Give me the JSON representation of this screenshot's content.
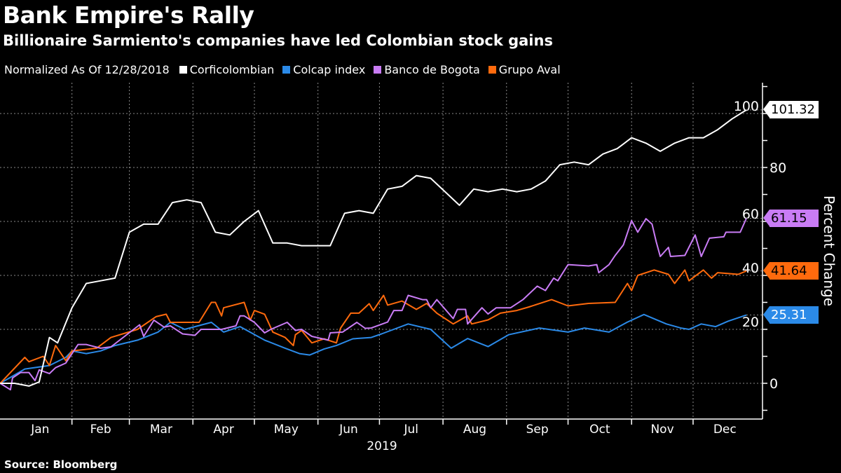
{
  "header": {
    "title": "Bank Empire's Rally",
    "subtitle": "Billionaire Sarmiento's companies have led Colombian stock gains"
  },
  "legend": {
    "note": "Normalized As Of 12/28/2018",
    "items": [
      {
        "label": "Corficolombian",
        "color": "#ffffff"
      },
      {
        "label": "Colcap index",
        "color": "#2b8ae8"
      },
      {
        "label": "Banco de Bogota",
        "color": "#c97cf5"
      },
      {
        "label": "Grupo Aval",
        "color": "#ff6a0d"
      }
    ]
  },
  "footer": {
    "source": "Source: Bloomberg"
  },
  "chart_data": {
    "type": "line",
    "title": "Bank Empire's Rally",
    "subtitle": "Billionaire Sarmiento's companies have led Colombian stock gains",
    "xlabel": "2019",
    "ylabel": "Percent Change",
    "y_axis_side": "right",
    "ylim": [
      -13,
      111
    ],
    "yticks": [
      0,
      20,
      40,
      60,
      80,
      100
    ],
    "xticks": [
      "Jan",
      "Feb",
      "Mar",
      "Apr",
      "May",
      "Jun",
      "Jul",
      "Aug",
      "Sep",
      "Oct",
      "Nov",
      "Dec"
    ],
    "grid": true,
    "legend_position": "top",
    "series": [
      {
        "name": "Corficolombian",
        "color": "#ffffff",
        "last_value_label": "101.32",
        "points": [
          [
            "2018-12-28",
            0
          ],
          [
            "2019-01-04",
            0
          ],
          [
            "2019-01-11",
            -1
          ],
          [
            "2019-01-16",
            0.5
          ],
          [
            "2019-01-21",
            17
          ],
          [
            "2019-01-25",
            15
          ],
          [
            "2019-02-01",
            28
          ],
          [
            "2019-02-08",
            37
          ],
          [
            "2019-02-15",
            38
          ],
          [
            "2019-02-22",
            39
          ],
          [
            "2019-03-01",
            56
          ],
          [
            "2019-03-08",
            59
          ],
          [
            "2019-03-15",
            59
          ],
          [
            "2019-03-22",
            67
          ],
          [
            "2019-03-29",
            68
          ],
          [
            "2019-04-05",
            67
          ],
          [
            "2019-04-12",
            56
          ],
          [
            "2019-04-19",
            55
          ],
          [
            "2019-04-26",
            60
          ],
          [
            "2019-05-03",
            64
          ],
          [
            "2019-05-10",
            52
          ],
          [
            "2019-05-17",
            52
          ],
          [
            "2019-05-24",
            51
          ],
          [
            "2019-05-31",
            51
          ],
          [
            "2019-06-07",
            51
          ],
          [
            "2019-06-14",
            63
          ],
          [
            "2019-06-21",
            64
          ],
          [
            "2019-06-28",
            63
          ],
          [
            "2019-07-05",
            72
          ],
          [
            "2019-07-12",
            73
          ],
          [
            "2019-07-19",
            77
          ],
          [
            "2019-07-26",
            76
          ],
          [
            "2019-08-02",
            71
          ],
          [
            "2019-08-09",
            66
          ],
          [
            "2019-08-16",
            72
          ],
          [
            "2019-08-23",
            71
          ],
          [
            "2019-08-30",
            72
          ],
          [
            "2019-09-06",
            71
          ],
          [
            "2019-09-13",
            72
          ],
          [
            "2019-09-20",
            75
          ],
          [
            "2019-09-27",
            81
          ],
          [
            "2019-10-04",
            82
          ],
          [
            "2019-10-11",
            81
          ],
          [
            "2019-10-18",
            85
          ],
          [
            "2019-10-25",
            87
          ],
          [
            "2019-11-01",
            91
          ],
          [
            "2019-11-08",
            89
          ],
          [
            "2019-11-15",
            86
          ],
          [
            "2019-11-22",
            89
          ],
          [
            "2019-11-29",
            91
          ],
          [
            "2019-12-06",
            91
          ],
          [
            "2019-12-13",
            94
          ],
          [
            "2019-12-20",
            98
          ],
          [
            "2019-12-27",
            101.32
          ]
        ]
      },
      {
        "name": "Colcap index",
        "color": "#2b8ae8",
        "last_value_label": "25.31",
        "points": [
          [
            "2018-12-28",
            0
          ],
          [
            "2019-01-09",
            5.3
          ],
          [
            "2019-01-21",
            6.6
          ],
          [
            "2019-01-29",
            9.6
          ],
          [
            "2019-02-01",
            12
          ],
          [
            "2019-02-08",
            11
          ],
          [
            "2019-02-15",
            12
          ],
          [
            "2019-02-22",
            14
          ],
          [
            "2019-03-05",
            16
          ],
          [
            "2019-03-15",
            19
          ],
          [
            "2019-03-21",
            22.6
          ],
          [
            "2019-03-28",
            20
          ],
          [
            "2019-04-10",
            22.6
          ],
          [
            "2019-04-16",
            19
          ],
          [
            "2019-04-24",
            21
          ],
          [
            "2019-05-06",
            16
          ],
          [
            "2019-05-16",
            13
          ],
          [
            "2019-05-23",
            11
          ],
          [
            "2019-05-28",
            10.5
          ],
          [
            "2019-06-04",
            12.7
          ],
          [
            "2019-06-10",
            14
          ],
          [
            "2019-06-18",
            16.5
          ],
          [
            "2019-06-27",
            17
          ],
          [
            "2019-07-02",
            18.3
          ],
          [
            "2019-07-15",
            22
          ],
          [
            "2019-07-26",
            20
          ],
          [
            "2019-08-05",
            13
          ],
          [
            "2019-08-13",
            16.6
          ],
          [
            "2019-08-23",
            13.6
          ],
          [
            "2019-09-02",
            18
          ],
          [
            "2019-09-17",
            20.5
          ],
          [
            "2019-10-01",
            19
          ],
          [
            "2019-10-09",
            20.5
          ],
          [
            "2019-10-21",
            19
          ],
          [
            "2019-10-30",
            22.7
          ],
          [
            "2019-11-07",
            25.5
          ],
          [
            "2019-11-18",
            22
          ],
          [
            "2019-11-25",
            20.5
          ],
          [
            "2019-11-29",
            20
          ],
          [
            "2019-12-05",
            22
          ],
          [
            "2019-12-12",
            21
          ],
          [
            "2019-12-18",
            23
          ],
          [
            "2019-12-27",
            25.31
          ]
        ]
      },
      {
        "name": "Banco de Bogota",
        "color": "#c97cf5",
        "last_value_label": "61.15",
        "points": [
          [
            "2018-12-28",
            0
          ],
          [
            "2019-01-02",
            -2.4
          ],
          [
            "2019-01-03",
            2
          ],
          [
            "2019-01-07",
            4
          ],
          [
            "2019-01-11",
            4
          ],
          [
            "2019-01-14",
            1
          ],
          [
            "2019-01-16",
            5
          ],
          [
            "2019-01-21",
            3.6
          ],
          [
            "2019-01-24",
            5.8
          ],
          [
            "2019-01-29",
            7.5
          ],
          [
            "2019-02-04",
            14.4
          ],
          [
            "2019-02-08",
            14.4
          ],
          [
            "2019-02-15",
            13
          ],
          [
            "2019-02-20",
            13.5
          ],
          [
            "2019-03-06",
            21.7
          ],
          [
            "2019-03-08",
            17.4
          ],
          [
            "2019-03-13",
            23.4
          ],
          [
            "2019-03-18",
            20.8
          ],
          [
            "2019-03-21",
            21.3
          ],
          [
            "2019-03-27",
            18.3
          ],
          [
            "2019-04-02",
            17.8
          ],
          [
            "2019-04-05",
            20
          ],
          [
            "2019-04-15",
            20
          ],
          [
            "2019-04-22",
            21.3
          ],
          [
            "2019-04-24",
            25
          ],
          [
            "2019-04-26",
            25
          ],
          [
            "2019-05-01",
            22.6
          ],
          [
            "2019-05-06",
            18.7
          ],
          [
            "2019-05-09",
            20
          ],
          [
            "2019-05-17",
            22.6
          ],
          [
            "2019-05-21",
            19.6
          ],
          [
            "2019-05-24",
            20
          ],
          [
            "2019-05-29",
            17.4
          ],
          [
            "2019-06-06",
            16
          ],
          [
            "2019-06-07",
            18.7
          ],
          [
            "2019-06-13",
            19
          ],
          [
            "2019-06-20",
            22.6
          ],
          [
            "2019-06-24",
            20.4
          ],
          [
            "2019-06-27",
            20.5
          ],
          [
            "2019-07-05",
            22.7
          ],
          [
            "2019-07-08",
            27
          ],
          [
            "2019-07-12",
            27
          ],
          [
            "2019-07-15",
            32.6
          ],
          [
            "2019-07-22",
            31
          ],
          [
            "2019-07-24",
            31
          ],
          [
            "2019-07-26",
            28
          ],
          [
            "2019-07-29",
            31
          ],
          [
            "2019-08-06",
            24
          ],
          [
            "2019-08-08",
            27.4
          ],
          [
            "2019-08-12",
            27.4
          ],
          [
            "2019-08-13",
            22
          ],
          [
            "2019-08-20",
            28
          ],
          [
            "2019-08-23",
            25.7
          ],
          [
            "2019-08-27",
            28
          ],
          [
            "2019-09-03",
            28
          ],
          [
            "2019-09-09",
            31
          ],
          [
            "2019-09-16",
            36
          ],
          [
            "2019-09-20",
            34.4
          ],
          [
            "2019-09-24",
            39
          ],
          [
            "2019-09-26",
            38
          ],
          [
            "2019-10-01",
            44
          ],
          [
            "2019-10-11",
            43.5
          ],
          [
            "2019-10-15",
            44
          ],
          [
            "2019-10-16",
            41
          ],
          [
            "2019-10-21",
            44
          ],
          [
            "2019-10-24",
            47.4
          ],
          [
            "2019-10-28",
            51.3
          ],
          [
            "2019-11-01",
            60.3
          ],
          [
            "2019-11-04",
            56
          ],
          [
            "2019-11-08",
            61
          ],
          [
            "2019-11-11",
            59
          ],
          [
            "2019-11-13",
            52.5
          ],
          [
            "2019-11-15",
            47
          ],
          [
            "2019-11-19",
            50.4
          ],
          [
            "2019-11-20",
            47
          ],
          [
            "2019-11-27",
            47.4
          ],
          [
            "2019-12-02",
            55
          ],
          [
            "2019-12-05",
            47
          ],
          [
            "2019-12-09",
            53.8
          ],
          [
            "2019-12-16",
            54.3
          ],
          [
            "2019-12-17",
            56
          ],
          [
            "2019-12-24",
            56
          ],
          [
            "2019-12-27",
            61.15
          ]
        ]
      },
      {
        "name": "Grupo Aval",
        "color": "#ff6a0d",
        "last_value_label": "41.64",
        "points": [
          [
            "2018-12-28",
            0
          ],
          [
            "2019-01-09",
            9.6
          ],
          [
            "2019-01-11",
            8
          ],
          [
            "2019-01-18",
            10
          ],
          [
            "2019-01-21",
            6.6
          ],
          [
            "2019-01-24",
            14
          ],
          [
            "2019-01-29",
            8.4
          ],
          [
            "2019-02-01",
            12
          ],
          [
            "2019-02-13",
            13
          ],
          [
            "2019-02-20",
            17
          ],
          [
            "2019-03-05",
            20
          ],
          [
            "2019-03-14",
            24.7
          ],
          [
            "2019-03-19",
            25.6
          ],
          [
            "2019-03-21",
            22.6
          ],
          [
            "2019-04-04",
            22.6
          ],
          [
            "2019-04-10",
            30
          ],
          [
            "2019-04-12",
            30
          ],
          [
            "2019-04-15",
            25
          ],
          [
            "2019-04-16",
            28
          ],
          [
            "2019-04-26",
            30
          ],
          [
            "2019-04-29",
            23.4
          ],
          [
            "2019-05-01",
            27
          ],
          [
            "2019-05-06",
            25.6
          ],
          [
            "2019-05-10",
            19
          ],
          [
            "2019-05-16",
            17
          ],
          [
            "2019-05-20",
            14
          ],
          [
            "2019-05-21",
            18
          ],
          [
            "2019-05-24",
            19.6
          ],
          [
            "2019-05-29",
            15
          ],
          [
            "2019-06-04",
            16.5
          ],
          [
            "2019-06-10",
            15
          ],
          [
            "2019-06-12",
            20.4
          ],
          [
            "2019-06-17",
            26
          ],
          [
            "2019-06-21",
            26
          ],
          [
            "2019-06-26",
            29.5
          ],
          [
            "2019-06-28",
            27
          ],
          [
            "2019-07-03",
            32.6
          ],
          [
            "2019-07-05",
            29
          ],
          [
            "2019-07-12",
            30.5
          ],
          [
            "2019-07-19",
            27.4
          ],
          [
            "2019-07-24",
            29.6
          ],
          [
            "2019-07-29",
            26
          ],
          [
            "2019-08-06",
            22
          ],
          [
            "2019-08-13",
            25
          ],
          [
            "2019-08-15",
            22
          ],
          [
            "2019-08-23",
            23.5
          ],
          [
            "2019-08-29",
            26
          ],
          [
            "2019-09-06",
            27
          ],
          [
            "2019-09-12",
            28.3
          ],
          [
            "2019-09-23",
            31
          ],
          [
            "2019-10-01",
            28.7
          ],
          [
            "2019-10-11",
            29.6
          ],
          [
            "2019-10-24",
            30
          ],
          [
            "2019-10-30",
            37
          ],
          [
            "2019-11-01",
            34.4
          ],
          [
            "2019-11-04",
            40
          ],
          [
            "2019-11-12",
            42
          ],
          [
            "2019-11-19",
            40.4
          ],
          [
            "2019-11-22",
            37
          ],
          [
            "2019-11-27",
            42
          ],
          [
            "2019-11-29",
            38
          ],
          [
            "2019-12-06",
            42
          ],
          [
            "2019-12-10",
            39
          ],
          [
            "2019-12-13",
            41
          ],
          [
            "2019-12-23",
            40.4
          ],
          [
            "2019-12-27",
            41.64
          ]
        ]
      }
    ]
  }
}
